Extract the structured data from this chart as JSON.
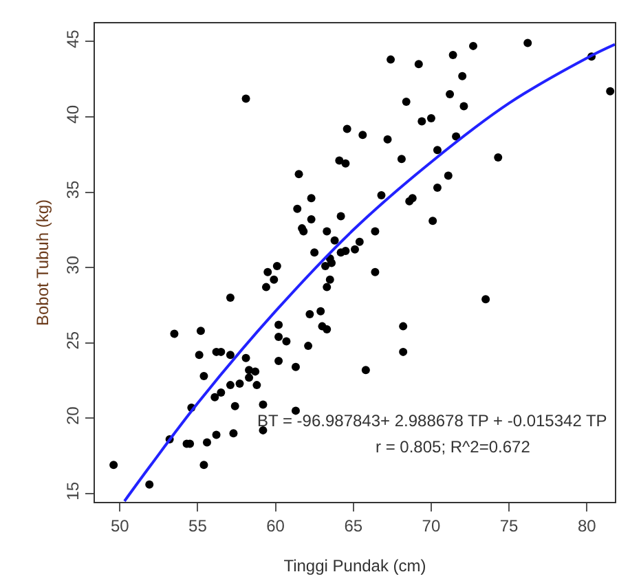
{
  "chart_data": {
    "type": "scatter",
    "xlabel": "Tinggi Pundak (cm)",
    "ylabel": "Bobot Tubuh (kg)",
    "xlim": [
      48.4,
      81.8
    ],
    "ylim": [
      14.45,
      46.2
    ],
    "xticks": [
      50,
      55,
      60,
      65,
      70,
      75,
      80
    ],
    "yticks": [
      15,
      20,
      25,
      30,
      35,
      40,
      45
    ],
    "marker": "circle",
    "grid": false,
    "annotations": [
      "BT = -96.987843+ 2.988678 TP + -0.015342 TP",
      "r = 0.805; R^2=0.672"
    ],
    "series": [
      {
        "color": "#000000",
        "x": [
          58.1,
          64.6,
          64.1,
          64.5,
          61.5,
          62.3,
          61.4,
          64.2,
          62.3,
          61.7,
          61.8,
          63.3,
          63.8,
          62.5,
          64.2,
          64.5,
          65.1,
          63.5,
          63.6,
          63.2,
          59.5,
          60.1,
          67.4,
          69.2,
          71.4,
          72.7,
          76.2,
          80.3,
          81.5,
          72.0,
          71.2,
          68.4,
          72.1,
          69.4,
          70.0,
          65.6,
          67.2,
          71.6,
          70.4,
          68.1,
          74.3,
          71.1,
          70.4,
          66.8,
          68.8,
          68.6,
          70.1,
          66.4,
          65.4,
          66.4,
          49.6,
          51.9,
          53.2,
          53.5,
          54.3,
          54.5,
          54.6,
          55.2,
          55.1,
          55.4,
          55.6,
          55.4,
          56.1,
          56.5,
          56.2,
          56.5,
          57.1,
          57.1,
          57.1,
          57.4,
          56.2,
          57.3,
          57.7,
          58.1,
          58.3,
          58.3,
          58.7,
          58.8,
          59.2,
          59.2,
          59.4,
          59.9,
          60.2,
          60.2,
          60.2,
          60.7,
          61.3,
          61.3,
          62.1,
          62.2,
          62.9,
          63.0,
          63.3,
          63.3,
          63.5,
          73.5,
          68.2,
          68.2,
          65.8
        ],
        "values": [
          41.2,
          39.2,
          37.1,
          36.9,
          36.2,
          34.6,
          33.9,
          33.4,
          33.2,
          32.6,
          32.4,
          32.4,
          31.8,
          31.0,
          31.0,
          31.1,
          31.2,
          30.6,
          30.3,
          30.1,
          29.7,
          30.1,
          43.8,
          43.5,
          44.1,
          44.7,
          44.9,
          44.0,
          41.7,
          42.7,
          41.5,
          41.0,
          40.7,
          39.7,
          39.9,
          38.8,
          38.5,
          38.7,
          37.8,
          37.2,
          37.3,
          36.1,
          35.3,
          34.8,
          34.6,
          34.4,
          33.1,
          32.4,
          31.7,
          29.7,
          16.9,
          15.6,
          18.6,
          25.6,
          18.3,
          18.3,
          20.7,
          25.8,
          24.2,
          22.8,
          18.4,
          16.9,
          21.4,
          21.7,
          24.4,
          24.4,
          28.0,
          24.2,
          22.2,
          20.8,
          18.9,
          19.0,
          22.3,
          24.0,
          23.2,
          22.7,
          23.1,
          22.2,
          20.9,
          19.2,
          28.7,
          29.2,
          26.2,
          25.4,
          23.8,
          25.1,
          23.4,
          20.5,
          24.8,
          26.9,
          27.1,
          26.1,
          25.9,
          28.7,
          29.2,
          27.9,
          26.1,
          24.4,
          23.2
        ]
      },
      {
        "type": "line",
        "marker": "none",
        "color": "#2222ff",
        "x": [
          50.3,
          52,
          55,
          60,
          65,
          70,
          75,
          80,
          81.8
        ],
        "values": [
          14.5,
          16.9,
          21.0,
          27.1,
          32.5,
          37.0,
          40.9,
          43.9,
          44.8
        ]
      }
    ]
  }
}
